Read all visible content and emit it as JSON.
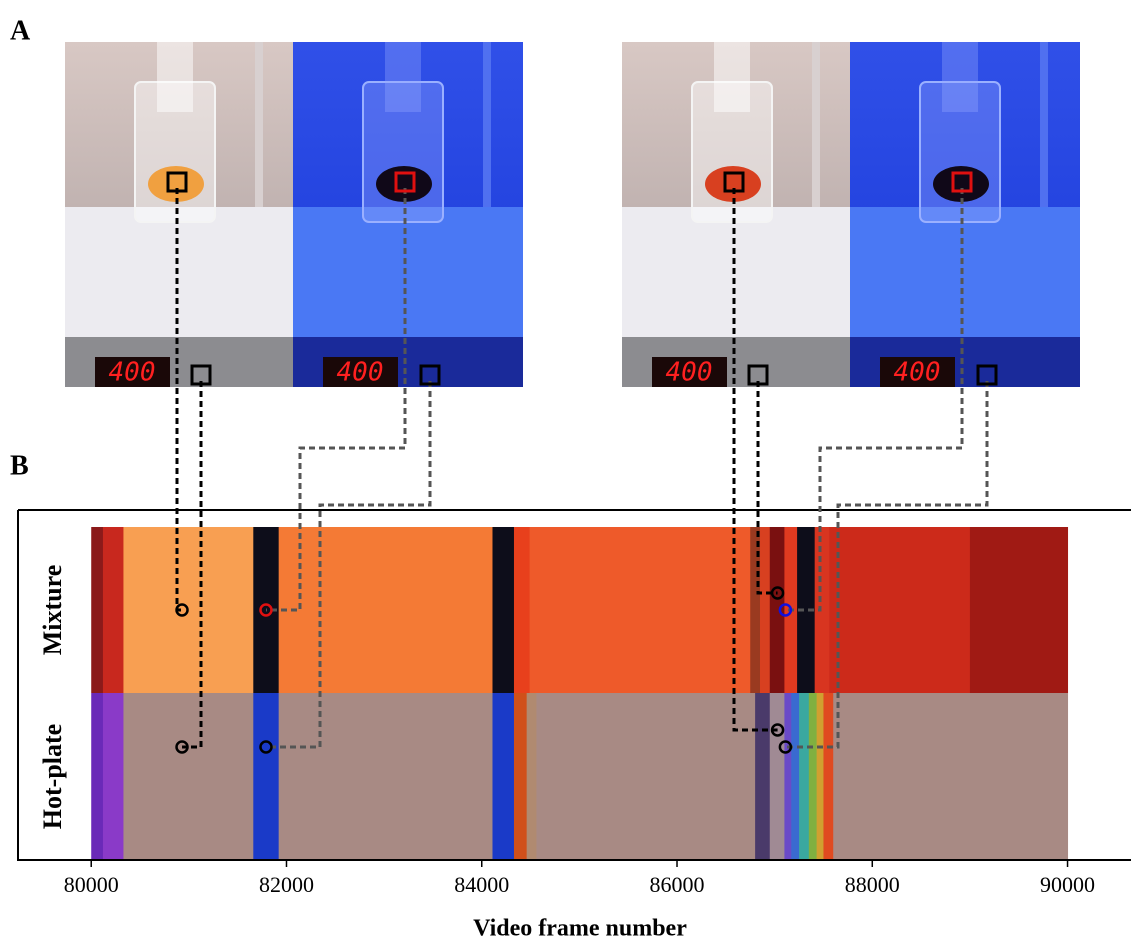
{
  "panels": {
    "a": "A",
    "b": "B"
  },
  "photos": [
    {
      "display": "400"
    },
    {
      "display": "400"
    },
    {
      "display": "400"
    },
    {
      "display": "400"
    }
  ],
  "chart_data": {
    "type": "barcode",
    "xlabel": "Video frame number",
    "xlim": [
      79250,
      90650
    ],
    "xticks": [
      80000,
      82000,
      84000,
      86000,
      88000,
      90000
    ],
    "rows": [
      {
        "name": "Mixture",
        "segments": [
          {
            "start": 80000,
            "end": 80120,
            "color": "#8b1a1a"
          },
          {
            "start": 80120,
            "end": 80330,
            "color": "#c8281e"
          },
          {
            "start": 80330,
            "end": 81660,
            "color": "#f89f52"
          },
          {
            "start": 81660,
            "end": 81920,
            "color": "#0d0d1a"
          },
          {
            "start": 81920,
            "end": 84110,
            "color": "#f47a35"
          },
          {
            "start": 84110,
            "end": 84330,
            "color": "#0d0d1a"
          },
          {
            "start": 84330,
            "end": 84490,
            "color": "#e8401c"
          },
          {
            "start": 84490,
            "end": 86750,
            "color": "#ee5a2a"
          },
          {
            "start": 86750,
            "end": 86850,
            "color": "#9a3a20"
          },
          {
            "start": 86850,
            "end": 86950,
            "color": "#d84020"
          },
          {
            "start": 86950,
            "end": 87100,
            "color": "#7a1010"
          },
          {
            "start": 87100,
            "end": 87230,
            "color": "#e03a20"
          },
          {
            "start": 87230,
            "end": 87410,
            "color": "#0d0d1a"
          },
          {
            "start": 87410,
            "end": 87560,
            "color": "#d83520"
          },
          {
            "start": 87560,
            "end": 89000,
            "color": "#cc2a1a"
          },
          {
            "start": 89000,
            "end": 90000,
            "color": "#a01a14"
          }
        ]
      },
      {
        "name": "Hot-plate",
        "segments": [
          {
            "start": 80000,
            "end": 80120,
            "color": "#6a2ab8"
          },
          {
            "start": 80120,
            "end": 80330,
            "color": "#8a3ac8"
          },
          {
            "start": 80330,
            "end": 81660,
            "color": "#a88a84"
          },
          {
            "start": 81660,
            "end": 81920,
            "color": "#1a3ac8"
          },
          {
            "start": 81920,
            "end": 84110,
            "color": "#a88a84"
          },
          {
            "start": 84110,
            "end": 84330,
            "color": "#1a3ac8"
          },
          {
            "start": 84330,
            "end": 84460,
            "color": "#d0501a"
          },
          {
            "start": 84460,
            "end": 84560,
            "color": "#b08a70"
          },
          {
            "start": 84560,
            "end": 86800,
            "color": "#a88a84"
          },
          {
            "start": 86800,
            "end": 86950,
            "color": "#4a3a6a"
          },
          {
            "start": 86950,
            "end": 87100,
            "color": "#a08a94"
          },
          {
            "start": 87100,
            "end": 87170,
            "color": "#6a4ac8"
          },
          {
            "start": 87170,
            "end": 87250,
            "color": "#3a6ad0"
          },
          {
            "start": 87250,
            "end": 87350,
            "color": "#3aa8a0"
          },
          {
            "start": 87350,
            "end": 87430,
            "color": "#80b040"
          },
          {
            "start": 87430,
            "end": 87500,
            "color": "#d0a030"
          },
          {
            "start": 87500,
            "end": 87600,
            "color": "#e04a20"
          },
          {
            "start": 87600,
            "end": 90000,
            "color": "#a88a84"
          }
        ]
      }
    ],
    "markers": [
      {
        "row": 0,
        "frame": 80930,
        "color": "#000000"
      },
      {
        "row": 1,
        "frame": 80930,
        "color": "#000000"
      },
      {
        "row": 0,
        "frame": 81790,
        "color": "#e01010"
      },
      {
        "row": 1,
        "frame": 81790,
        "color": "#000000"
      },
      {
        "row": 1,
        "frame": 87030,
        "color": "#000000"
      },
      {
        "row": 0,
        "frame": 87030,
        "color": "#000000"
      },
      {
        "row": 0,
        "frame": 87110,
        "color": "#1010e0"
      },
      {
        "row": 1,
        "frame": 87110,
        "color": "#000000"
      }
    ]
  }
}
